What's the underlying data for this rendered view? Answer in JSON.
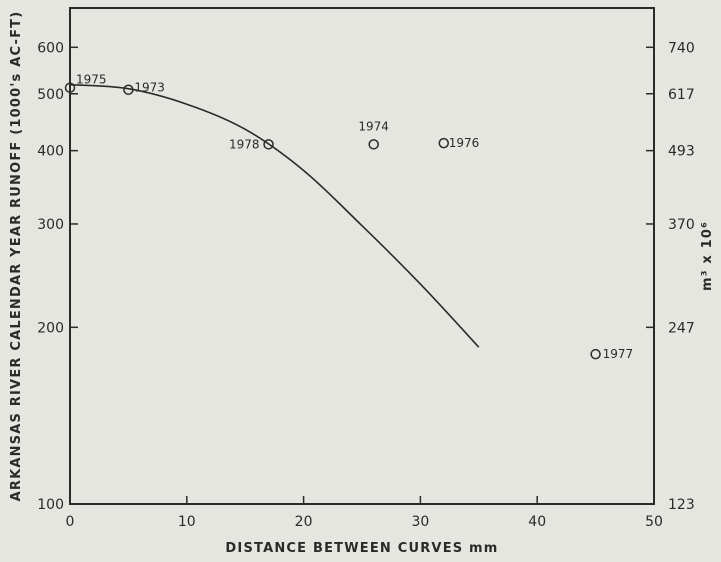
{
  "chart_data": {
    "type": "scatter",
    "title": "",
    "xlabel": "DISTANCE BETWEEN CURVES mm",
    "ylabel": "ARKANSAS RIVER CALENDAR YEAR RUNOFF (1000's AC-FT)",
    "y2label": "m³ x 10⁶",
    "xlim": [
      0,
      50
    ],
    "ylim": [
      100,
      700
    ],
    "yscale": "log",
    "x_ticks": [
      0,
      10,
      20,
      30,
      40,
      50
    ],
    "y_ticks": [
      100,
      200,
      300,
      400,
      500,
      600
    ],
    "y2_ticks": [
      {
        "label": "740",
        "at": 600
      },
      {
        "label": "617",
        "at": 500
      },
      {
        "label": "493",
        "at": 400
      },
      {
        "label": "370",
        "at": 300
      },
      {
        "label": "247",
        "at": 200
      },
      {
        "label": "123",
        "at": 100
      }
    ],
    "points": [
      {
        "label": "1975",
        "x": 0,
        "y": 512
      },
      {
        "label": "1973",
        "x": 5,
        "y": 508
      },
      {
        "label": "1978",
        "x": 17,
        "y": 410
      },
      {
        "label": "1974",
        "x": 26,
        "y": 410
      },
      {
        "label": "1976",
        "x": 32,
        "y": 412
      },
      {
        "label": "1977",
        "x": 45,
        "y": 180
      }
    ],
    "curve": {
      "x": [
        0,
        5,
        10,
        15,
        20,
        25,
        30,
        35
      ],
      "y": [
        518,
        510,
        480,
        435,
        370,
        298,
        237,
        185
      ]
    },
    "grid": false,
    "legend": "none"
  }
}
